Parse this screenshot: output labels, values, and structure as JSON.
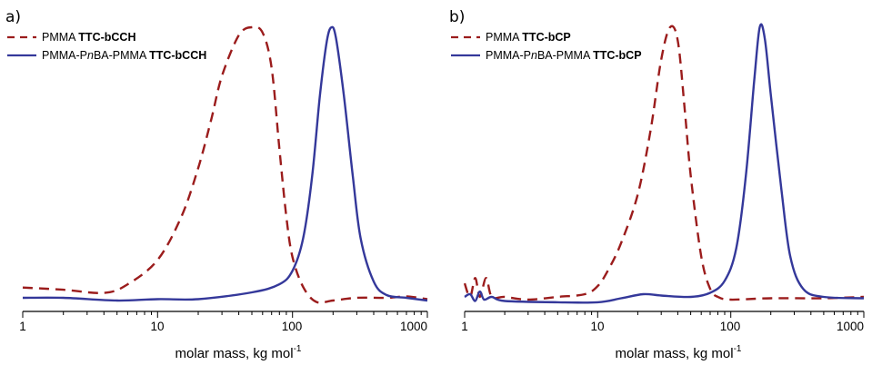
{
  "chart_data": [
    {
      "type": "line",
      "panel_label": "a)",
      "xlabel": "molar mass, kg mol",
      "xlabel_sup": "-1",
      "xscale": "log",
      "xlim": [
        1,
        1000
      ],
      "xticks": [
        "1",
        "10",
        "100",
        "1000"
      ],
      "legend_position": "top-left",
      "series": [
        {
          "name_parts": [
            "PMMA ",
            "TTC-bCCH"
          ],
          "style": "dashed",
          "color": "#9b1c1c",
          "points": [
            [
              1,
              0.038
            ],
            [
              2,
              0.03
            ],
            [
              4,
              0.018
            ],
            [
              6,
              0.05
            ],
            [
              10,
              0.14
            ],
            [
              15,
              0.3
            ],
            [
              20,
              0.48
            ],
            [
              25,
              0.66
            ],
            [
              30,
              0.82
            ],
            [
              40,
              0.97
            ],
            [
              50,
              1.0
            ],
            [
              60,
              0.98
            ],
            [
              70,
              0.85
            ],
            [
              80,
              0.55
            ],
            [
              90,
              0.3
            ],
            [
              100,
              0.15
            ],
            [
              120,
              0.04
            ],
            [
              150,
              -0.015
            ],
            [
              200,
              -0.01
            ],
            [
              300,
              0.0
            ],
            [
              500,
              0.0
            ],
            [
              700,
              0.005
            ],
            [
              1000,
              -0.005
            ]
          ]
        },
        {
          "name_parts": [
            "PMMA-P",
            "n",
            "BA-PMMA ",
            "TTC-bCCH"
          ],
          "style": "solid",
          "color": "#34389a",
          "points": [
            [
              1,
              0.0
            ],
            [
              2,
              0.0
            ],
            [
              5,
              -0.01
            ],
            [
              10,
              -0.005
            ],
            [
              20,
              -0.005
            ],
            [
              50,
              0.02
            ],
            [
              80,
              0.05
            ],
            [
              100,
              0.1
            ],
            [
              120,
              0.22
            ],
            [
              140,
              0.45
            ],
            [
              160,
              0.75
            ],
            [
              180,
              0.95
            ],
            [
              195,
              1.0
            ],
            [
              210,
              0.96
            ],
            [
              240,
              0.75
            ],
            [
              280,
              0.45
            ],
            [
              320,
              0.22
            ],
            [
              400,
              0.06
            ],
            [
              500,
              0.01
            ],
            [
              700,
              0.0
            ],
            [
              1000,
              -0.01
            ]
          ]
        }
      ]
    },
    {
      "type": "line",
      "panel_label": "b)",
      "xlabel": "molar mass, kg mol",
      "xlabel_sup": "-1",
      "xscale": "log",
      "xlim": [
        1,
        1000
      ],
      "xticks": [
        "1",
        "10",
        "100",
        "1000"
      ],
      "legend_position": "top-left",
      "series": [
        {
          "name_parts": [
            "PMMA ",
            "TTC-bCP"
          ],
          "style": "dashed",
          "color": "#9b1c1c",
          "points": [
            [
              1,
              0.05
            ],
            [
              1.1,
              0.0
            ],
            [
              1.2,
              0.07
            ],
            [
              1.3,
              0.0
            ],
            [
              1.45,
              0.07
            ],
            [
              1.6,
              0.0
            ],
            [
              2,
              0.0
            ],
            [
              3,
              -0.01
            ],
            [
              5,
              0.0
            ],
            [
              8,
              0.01
            ],
            [
              10,
              0.04
            ],
            [
              12,
              0.1
            ],
            [
              15,
              0.2
            ],
            [
              20,
              0.38
            ],
            [
              25,
              0.62
            ],
            [
              30,
              0.88
            ],
            [
              35,
              1.0
            ],
            [
              40,
              0.95
            ],
            [
              45,
              0.7
            ],
            [
              50,
              0.45
            ],
            [
              60,
              0.15
            ],
            [
              70,
              0.03
            ],
            [
              80,
              0.0
            ],
            [
              100,
              -0.01
            ],
            [
              200,
              -0.005
            ],
            [
              500,
              -0.005
            ],
            [
              1000,
              0.0
            ]
          ]
        },
        {
          "name_parts": [
            "PMMA-P",
            "n",
            "BA-PMMA ",
            "TTC-bCP"
          ],
          "style": "solid",
          "color": "#34389a",
          "points": [
            [
              1,
              0.0
            ],
            [
              1.1,
              0.01
            ],
            [
              1.2,
              -0.015
            ],
            [
              1.3,
              0.02
            ],
            [
              1.4,
              -0.01
            ],
            [
              1.6,
              0.0
            ],
            [
              2,
              -0.015
            ],
            [
              5,
              -0.02
            ],
            [
              10,
              -0.02
            ],
            [
              15,
              -0.005
            ],
            [
              22,
              0.01
            ],
            [
              30,
              0.005
            ],
            [
              50,
              0.0
            ],
            [
              70,
              0.015
            ],
            [
              90,
              0.06
            ],
            [
              110,
              0.18
            ],
            [
              130,
              0.45
            ],
            [
              150,
              0.8
            ],
            [
              165,
              1.0
            ],
            [
              180,
              0.96
            ],
            [
              200,
              0.75
            ],
            [
              240,
              0.4
            ],
            [
              280,
              0.15
            ],
            [
              350,
              0.03
            ],
            [
              500,
              0.0
            ],
            [
              1000,
              -0.005
            ]
          ]
        }
      ]
    }
  ]
}
